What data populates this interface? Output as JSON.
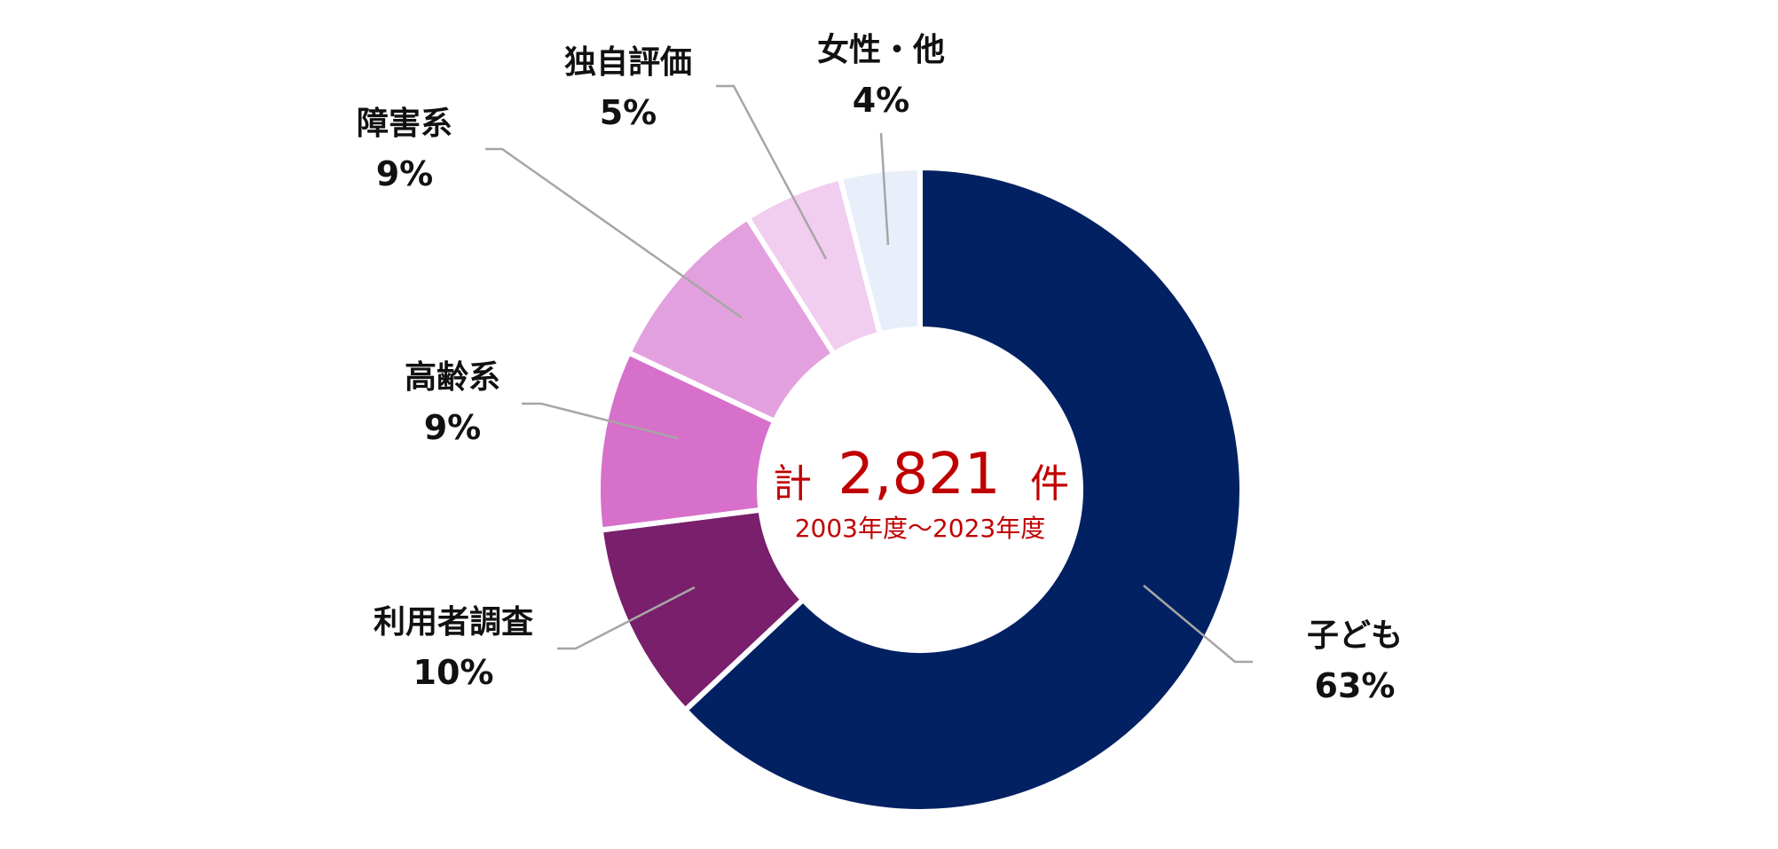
{
  "chart_data": {
    "type": "pie",
    "variant": "donut",
    "categories": [
      "子ども",
      "利用者調査",
      "高齢系",
      "障害系",
      "独自評価",
      "女性・他"
    ],
    "values": [
      63,
      10,
      9,
      9,
      5,
      4
    ],
    "value_labels": [
      "63%",
      "10%",
      "9%",
      "9%",
      "5%",
      "4%"
    ],
    "colors": [
      "#022163",
      "#791f6b",
      "#d670cb",
      "#e3a0de",
      "#f1cdef",
      "#e8effb"
    ],
    "center": {
      "prefix": "計",
      "total": "2,821",
      "suffix": "件",
      "period": "2003年度～2023年度"
    },
    "leader_line_color": "#a6a6a6",
    "center_text_color": "#c00000"
  }
}
